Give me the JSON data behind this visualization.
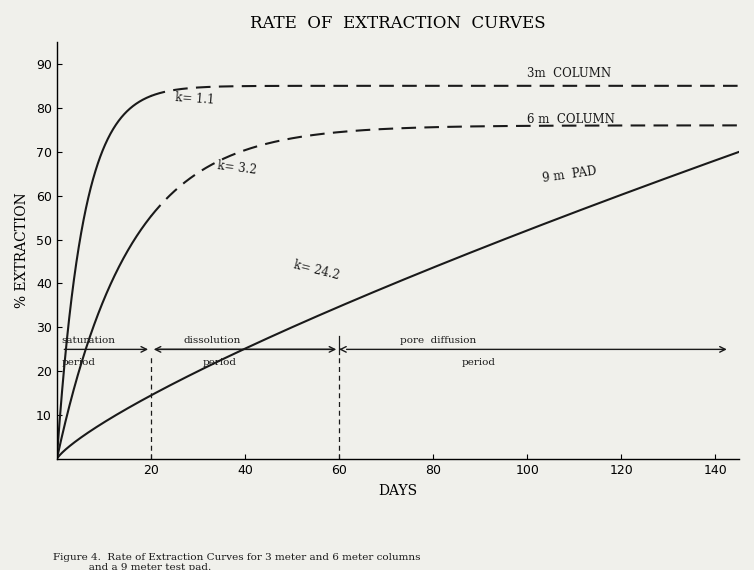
{
  "title": "RATE  OF  EXTRACTION  CURVES",
  "xlabel": "DAYS",
  "ylabel": "% EXTRACTION",
  "xlim": [
    0,
    145
  ],
  "ylim": [
    0,
    95
  ],
  "xticks": [
    20,
    40,
    60,
    80,
    100,
    120,
    140
  ],
  "yticks": [
    10,
    20,
    30,
    40,
    50,
    60,
    70,
    80,
    90
  ],
  "bg_color": "#f0f0eb",
  "line_color": "#1a1a1a",
  "curve_labels": {
    "k1": "k= 1.1",
    "k2": "k= 3.2",
    "k3": "k= 24.2",
    "col3m": "3m  COLUMN",
    "col6m": "6 m  COLUMN",
    "pad9m": "9 m  PAD"
  },
  "period_y": 25,
  "caption": "Figure 4.  Rate of Extraction Curves for 3 meter and 6 meter columns\n           and a 9 meter test pad."
}
